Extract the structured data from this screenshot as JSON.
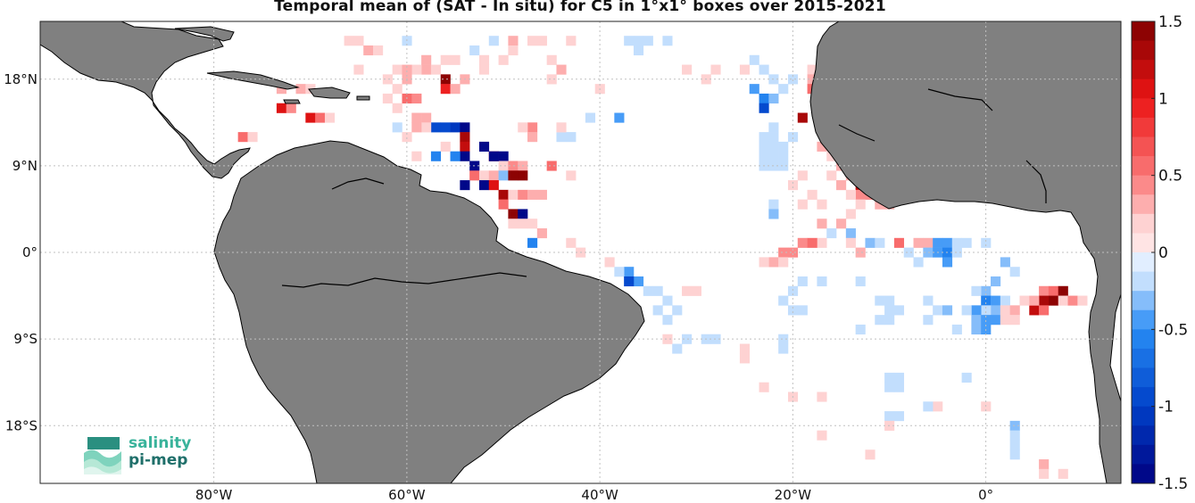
{
  "title": "Temporal mean of (SAT - In situ) for C5 in 1°x1° boxes over 2015-2021",
  "map": {
    "lon_range": [
      -98,
      14
    ],
    "lat_range": [
      -24,
      24
    ],
    "land_color": "#808080",
    "ocean_color": "#ffffff",
    "grid": "dotted",
    "lon_ticks": [
      {
        "value": -80,
        "label": "80°W"
      },
      {
        "value": -60,
        "label": "60°W"
      },
      {
        "value": -40,
        "label": "40°W"
      },
      {
        "value": -20,
        "label": "20°W"
      },
      {
        "value": 0,
        "label": "0°"
      }
    ],
    "lat_ticks": [
      {
        "value": 18,
        "label": "18°N"
      },
      {
        "value": 9,
        "label": "9°N"
      },
      {
        "value": 0,
        "label": "0°"
      },
      {
        "value": -9,
        "label": "9°S"
      },
      {
        "value": -18,
        "label": "18°S"
      }
    ]
  },
  "colorbar": {
    "min": -1.5,
    "max": 1.5,
    "levels": 24,
    "colormap": "blue-white-red",
    "ticks": [
      {
        "value": 1.5,
        "label": "1.5"
      },
      {
        "value": 1,
        "label": "1"
      },
      {
        "value": 0.5,
        "label": "0.5"
      },
      {
        "value": 0,
        "label": "0"
      },
      {
        "value": -0.5,
        "label": "-0.5"
      },
      {
        "value": -1,
        "label": "-1"
      },
      {
        "value": -1.5,
        "label": "-1.5"
      }
    ]
  },
  "logo": {
    "line1": "salinity",
    "line2": "pi-mep"
  },
  "chart_data": {
    "type": "heatmap",
    "title": "Temporal mean of (SAT - In situ) for C5 in 1°x1° boxes over 2015-2021",
    "xlabel": "",
    "ylabel": "",
    "x_units": "longitude (deg E)",
    "y_units": "latitude (deg N)",
    "value_range": [
      -1.5,
      1.5
    ],
    "cells": [
      [
        -56,
        18,
        1.5
      ],
      [
        -56,
        17,
        0.9
      ],
      [
        -54,
        18,
        0.3
      ],
      [
        -55,
        17,
        0.3
      ],
      [
        -58,
        19,
        0.3
      ],
      [
        -60,
        18,
        0.3
      ],
      [
        -60,
        16,
        0.6
      ],
      [
        -59,
        16,
        0.4
      ],
      [
        -61,
        17,
        0.2
      ],
      [
        -62,
        16,
        0.2
      ],
      [
        -61,
        19,
        0.2
      ],
      [
        -59,
        19,
        0.2
      ],
      [
        -65,
        19,
        0.2
      ],
      [
        -62,
        18,
        0.2
      ],
      [
        -61,
        15,
        0.2
      ],
      [
        -73,
        15,
        1.1
      ],
      [
        -72,
        15,
        0.4
      ],
      [
        -70,
        14,
        1.1
      ],
      [
        -69,
        14,
        0.5
      ],
      [
        -68,
        14,
        0.2
      ],
      [
        -73,
        17,
        0.3
      ],
      [
        -71,
        17,
        0.3
      ],
      [
        -70,
        17,
        0.2
      ],
      [
        -77,
        12,
        0.5
      ],
      [
        -76,
        12,
        0.2
      ],
      [
        -59,
        14,
        0.3
      ],
      [
        -58,
        14,
        0.3
      ],
      [
        -57,
        13,
        -0.9
      ],
      [
        -56,
        13,
        -0.9
      ],
      [
        -55,
        13,
        -1.1
      ],
      [
        -54,
        13,
        -1.4
      ],
      [
        -58,
        13,
        0.2
      ],
      [
        -59,
        13,
        0.3
      ],
      [
        -60,
        12,
        0.2
      ],
      [
        -61,
        13,
        -0.2
      ],
      [
        -54,
        12,
        1.3
      ],
      [
        -54,
        11,
        1.2
      ],
      [
        -54,
        10,
        -1.5
      ],
      [
        -53,
        9,
        -1.5
      ],
      [
        -55,
        10,
        -0.6
      ],
      [
        -51,
        10,
        0.9
      ],
      [
        -50,
        10,
        -1.5
      ],
      [
        -50,
        9,
        0.2
      ],
      [
        -49,
        9,
        0.4
      ],
      [
        -48,
        9,
        0.3
      ],
      [
        -53,
        8,
        0.5
      ],
      [
        -52,
        8,
        0.2
      ],
      [
        -51,
        8,
        0.3
      ],
      [
        -50,
        8,
        -0.3
      ],
      [
        -49,
        8,
        1.4
      ],
      [
        -48,
        8,
        1.4
      ],
      [
        -54,
        7,
        -1.5
      ],
      [
        -52,
        7,
        -1.5
      ],
      [
        -51,
        7,
        1.0
      ],
      [
        -50,
        6,
        1.3
      ],
      [
        -49,
        6,
        0.2
      ],
      [
        -48,
        6,
        0.4
      ],
      [
        -50,
        5,
        0.6
      ],
      [
        -49,
        4,
        1.4
      ],
      [
        -48,
        4,
        -1.5
      ],
      [
        -49,
        3,
        0.2
      ],
      [
        -48,
        3,
        0.2
      ],
      [
        -47,
        3,
        0.2
      ],
      [
        -46,
        2,
        0.3
      ],
      [
        -47,
        1,
        -0.6
      ],
      [
        -45,
        9,
        0.5
      ],
      [
        -47,
        6,
        0.3
      ],
      [
        -46,
        6,
        0.3
      ],
      [
        -56,
        11,
        0.2
      ],
      [
        -57,
        10,
        -0.6
      ],
      [
        -59,
        10,
        0.2
      ],
      [
        -51,
        10,
        -1.5
      ],
      [
        -52,
        11,
        -1.5
      ],
      [
        -44,
        12,
        -0.2
      ],
      [
        -43,
        12,
        -0.2
      ],
      [
        -44,
        13,
        0.2
      ],
      [
        -47,
        13,
        0.4
      ],
      [
        -41,
        14,
        -0.2
      ],
      [
        -47,
        12,
        0.3
      ],
      [
        -48,
        13,
        0.2
      ],
      [
        -38,
        14,
        -0.4
      ],
      [
        -43,
        8,
        0.2
      ],
      [
        -43,
        1,
        0.2
      ],
      [
        -51,
        22,
        -0.2
      ],
      [
        -49,
        22,
        0.3
      ],
      [
        -47,
        22,
        0.2
      ],
      [
        -45,
        20,
        0.2
      ],
      [
        -44,
        19,
        0.3
      ],
      [
        -45,
        18,
        0.2
      ],
      [
        -55,
        20,
        0.2
      ],
      [
        -53,
        21,
        -0.2
      ],
      [
        -52,
        20,
        0.2
      ],
      [
        -58,
        20,
        0.3
      ],
      [
        -66,
        22,
        0.2
      ],
      [
        -65,
        22,
        0.2
      ],
      [
        -64,
        21,
        0.3
      ],
      [
        -63,
        21,
        0.2
      ],
      [
        -60,
        22,
        -0.2
      ],
      [
        -60,
        19,
        0.3
      ],
      [
        -57,
        19,
        0.2
      ],
      [
        -56,
        20,
        0.2
      ],
      [
        -52,
        19,
        0.2
      ],
      [
        -50,
        20,
        0.2
      ],
      [
        -49,
        21,
        0.2
      ],
      [
        -46,
        22,
        0.2
      ],
      [
        -43,
        22,
        0.2
      ],
      [
        -40,
        17,
        0.2
      ],
      [
        -36,
        21,
        -0.2
      ],
      [
        -37,
        22,
        -0.2
      ],
      [
        -36,
        22,
        -0.2
      ],
      [
        -35,
        22,
        -0.2
      ],
      [
        -33,
        22,
        -0.2
      ],
      [
        -31,
        19,
        0.2
      ],
      [
        -28,
        19,
        0.2
      ],
      [
        -29,
        18,
        0.2
      ],
      [
        -25,
        19,
        0.2
      ],
      [
        -24,
        20,
        -0.2
      ],
      [
        -23,
        19,
        -0.2
      ],
      [
        -24,
        17,
        -0.4
      ],
      [
        -22,
        18,
        -0.2
      ],
      [
        -21,
        17,
        -0.2
      ],
      [
        -23,
        16,
        -0.6
      ],
      [
        -22,
        16,
        -0.3
      ],
      [
        -23,
        15,
        -0.9
      ],
      [
        -20,
        18,
        -0.2
      ],
      [
        -18,
        19,
        0.2
      ],
      [
        -18,
        18,
        0.3
      ],
      [
        -17,
        17,
        0.4
      ],
      [
        -18,
        17,
        0.5
      ],
      [
        -17,
        16,
        0.3
      ],
      [
        -17,
        19,
        0.2
      ],
      [
        -16,
        18,
        -0.2
      ],
      [
        -19,
        14,
        1.3
      ],
      [
        -17,
        11,
        0.3
      ],
      [
        -16,
        10,
        0.2
      ],
      [
        -15,
        9,
        0.3
      ],
      [
        -16,
        8,
        0.2
      ],
      [
        -14,
        8,
        0.3
      ],
      [
        -13,
        7,
        1.2
      ],
      [
        -12,
        7,
        1.2
      ],
      [
        -13,
        6,
        0.4
      ],
      [
        -12,
        6,
        0.4
      ],
      [
        -14,
        6,
        0.2
      ],
      [
        -15,
        7,
        0.3
      ],
      [
        -11,
        5,
        0.3
      ],
      [
        -10,
        5,
        0.3
      ],
      [
        -13,
        5,
        0.2
      ],
      [
        -14,
        4,
        0.2
      ],
      [
        -15,
        3,
        0.3
      ],
      [
        -17,
        3,
        0.3
      ],
      [
        -16,
        2,
        -0.2
      ],
      [
        -14,
        2,
        -0.3
      ],
      [
        -12,
        1,
        -0.3
      ],
      [
        -11,
        1,
        -0.2
      ],
      [
        -9,
        1,
        0.6
      ],
      [
        -13,
        0,
        0.3
      ],
      [
        -14,
        1,
        0.2
      ],
      [
        -17,
        1,
        0.2
      ],
      [
        -19,
        1,
        0.4
      ],
      [
        -18,
        1,
        0.5
      ],
      [
        -20,
        0,
        0.4
      ],
      [
        -21,
        0,
        0.4
      ],
      [
        -22,
        -1,
        0.3
      ],
      [
        -23,
        -1,
        0.2
      ],
      [
        -21,
        -1,
        0.2
      ],
      [
        -20,
        7,
        0.2
      ],
      [
        -19,
        8,
        0.2
      ],
      [
        -22,
        5,
        -0.2
      ],
      [
        -22,
        4,
        -0.3
      ],
      [
        -18,
        6,
        0.2
      ],
      [
        -17,
        5,
        0.2
      ],
      [
        -19,
        5,
        0.2
      ],
      [
        -7,
        1,
        0.3
      ],
      [
        -6,
        1,
        0.3
      ],
      [
        -5,
        1,
        -0.5
      ],
      [
        -4,
        1,
        -0.4
      ],
      [
        -3,
        1,
        -0.2
      ],
      [
        -2,
        1,
        -0.2
      ],
      [
        0,
        1,
        -0.2
      ],
      [
        -6,
        0,
        -0.3
      ],
      [
        -5,
        0,
        -0.5
      ],
      [
        -4,
        0,
        -0.6
      ],
      [
        -8,
        0,
        -0.2
      ],
      [
        -3,
        0,
        -0.2
      ],
      [
        -7,
        -1,
        -0.2
      ],
      [
        -4,
        -1,
        -0.4
      ],
      [
        2,
        -1,
        -0.3
      ],
      [
        3,
        -2,
        -0.2
      ],
      [
        1,
        -3,
        -0.3
      ],
      [
        0,
        -4,
        -0.3
      ],
      [
        -1,
        -4,
        -0.2
      ],
      [
        0,
        -5,
        -0.6
      ],
      [
        1,
        -5,
        -0.4
      ],
      [
        2,
        -5,
        -0.2
      ],
      [
        1,
        -6,
        -0.3
      ],
      [
        0,
        -6,
        -0.2
      ],
      [
        -1,
        -6,
        -0.5
      ],
      [
        -2,
        -6,
        -0.2
      ],
      [
        -1,
        -7,
        -0.3
      ],
      [
        0,
        -7,
        -0.4
      ],
      [
        1,
        -7,
        -0.4
      ],
      [
        -1,
        -8,
        -0.3
      ],
      [
        0,
        -8,
        -0.5
      ],
      [
        2,
        -6,
        0.2
      ],
      [
        3,
        -6,
        0.3
      ],
      [
        3,
        -7,
        0.2
      ],
      [
        2,
        -7,
        0.2
      ],
      [
        6,
        -4,
        0.4
      ],
      [
        7,
        -4,
        0.5
      ],
      [
        8,
        -4,
        1.5
      ],
      [
        7,
        -5,
        1.5
      ],
      [
        8,
        -5,
        0.2
      ],
      [
        6,
        -5,
        1.3
      ],
      [
        5,
        -6,
        1.2
      ],
      [
        6,
        -6,
        0.5
      ],
      [
        9,
        -5,
        0.4
      ],
      [
        10,
        -5,
        0.2
      ],
      [
        4,
        -5,
        0.2
      ],
      [
        5,
        -5,
        0.3
      ],
      [
        -11,
        -5,
        -0.2
      ],
      [
        -10,
        -5,
        -0.2
      ],
      [
        -10,
        -6,
        -0.2
      ],
      [
        -9,
        -6,
        -0.2
      ],
      [
        -11,
        -7,
        -0.2
      ],
      [
        -10,
        -7,
        -0.2
      ],
      [
        -6,
        -5,
        -0.2
      ],
      [
        -5,
        -6,
        -0.2
      ],
      [
        -4,
        -6,
        -0.3
      ],
      [
        -6,
        -7,
        -0.2
      ],
      [
        -3,
        -8,
        -0.2
      ],
      [
        -13,
        -8,
        -0.2
      ],
      [
        -19,
        -6,
        -0.2
      ],
      [
        -20,
        -6,
        -0.2
      ],
      [
        -21,
        -5,
        -0.2
      ],
      [
        -20,
        -4,
        -0.2
      ],
      [
        -19,
        -3,
        -0.2
      ],
      [
        -17,
        -3,
        -0.2
      ],
      [
        -13,
        -3,
        -0.2
      ],
      [
        -37,
        -2,
        -0.5
      ],
      [
        -36,
        -3,
        -0.5
      ],
      [
        -38,
        -2,
        -0.2
      ],
      [
        -37,
        -3,
        -1.0
      ],
      [
        -35,
        -4,
        -0.2
      ],
      [
        -34,
        -4,
        -0.2
      ],
      [
        -33,
        -5,
        -0.2
      ],
      [
        -31,
        -4,
        0.2
      ],
      [
        -30,
        -4,
        0.2
      ],
      [
        -39,
        -1,
        0.2
      ],
      [
        -42,
        0,
        0.2
      ],
      [
        -34,
        -6,
        -0.2
      ],
      [
        -32,
        -6,
        -0.2
      ],
      [
        -33,
        -7,
        -0.2
      ],
      [
        -33,
        -9,
        0.2
      ],
      [
        -32,
        -10,
        -0.2
      ],
      [
        -31,
        -9,
        -0.2
      ],
      [
        -29,
        -9,
        -0.2
      ],
      [
        -28,
        -9,
        -0.2
      ],
      [
        -25,
        -10,
        0.2
      ],
      [
        -25,
        -11,
        0.2
      ],
      [
        -21,
        -9,
        -0.2
      ],
      [
        -21,
        -10,
        -0.2
      ],
      [
        -23,
        -14,
        0.2
      ],
      [
        -20,
        -15,
        0.2
      ],
      [
        -17,
        -15,
        0.2
      ],
      [
        -10,
        -13,
        -0.2
      ],
      [
        -10,
        -14,
        -0.2
      ],
      [
        -9,
        -13,
        -0.2
      ],
      [
        -9,
        -14,
        -0.2
      ],
      [
        -10,
        -17,
        -0.2
      ],
      [
        -9,
        -17,
        -0.2
      ],
      [
        -10,
        -18,
        0.2
      ],
      [
        -5,
        -16,
        0.2
      ],
      [
        -2,
        -13,
        -0.2
      ],
      [
        -6,
        -16,
        -0.2
      ],
      [
        0,
        -16,
        0.2
      ],
      [
        3,
        -18,
        -0.3
      ],
      [
        3,
        -19,
        -0.2
      ],
      [
        3,
        -20,
        -0.2
      ],
      [
        3,
        -21,
        -0.2
      ],
      [
        -12,
        -21,
        0.2
      ],
      [
        -17,
        -19,
        0.2
      ],
      [
        6,
        -22,
        0.3
      ],
      [
        8,
        -23,
        0.2
      ],
      [
        6,
        -23,
        0.2
      ],
      [
        -22,
        13,
        -0.2
      ],
      [
        -22,
        12,
        -0.2
      ],
      [
        -22,
        11,
        -0.2
      ],
      [
        -21,
        11,
        -0.2
      ],
      [
        -22,
        10,
        -0.2
      ],
      [
        -21,
        10,
        -0.2
      ],
      [
        -20,
        12,
        -0.2
      ],
      [
        -23,
        12,
        -0.2
      ],
      [
        -23,
        11,
        -0.2
      ],
      [
        -23,
        10,
        -0.2
      ],
      [
        -23,
        9,
        -0.2
      ],
      [
        -22,
        9,
        -0.2
      ],
      [
        -21,
        9,
        -0.2
      ]
    ]
  }
}
